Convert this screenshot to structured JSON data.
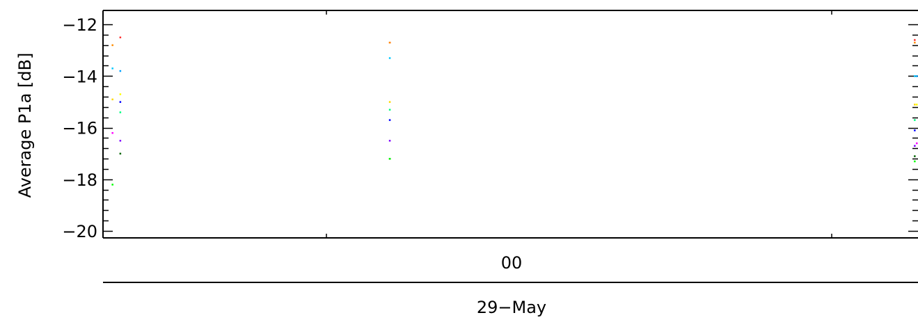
{
  "chart_data": {
    "type": "scatter",
    "title": "",
    "ylabel": "Average P1a [dB]",
    "ylim": [
      -20,
      -12
    ],
    "y_major_ticks": [
      -20,
      -18,
      -16,
      -14,
      -12
    ],
    "y_tick_labels": [
      "−20",
      "−18",
      "−16",
      "−14",
      "−12"
    ],
    "y_minor_step": 0.4,
    "x_tick_labels": [
      "00"
    ],
    "x_date_label": "29−May",
    "grid": false,
    "series": [
      {
        "color": "#ff3030",
        "x": [
          "28-May 21:05",
          "28-May 23:58",
          "29-May 05:35"
        ],
        "y": [
          -12.5,
          -12.7,
          -12.6
        ]
      },
      {
        "color": "#ff8c00",
        "x": [
          "28-May 21:00",
          "28-May 23:58",
          "29-May 05:35"
        ],
        "y": [
          -12.8,
          -12.7,
          -12.7
        ]
      },
      {
        "color": "#00c8ff",
        "x": [
          "28-May 21:00",
          "28-May 23:58",
          "29-May 05:35"
        ],
        "y": [
          -13.7,
          -13.3,
          -14.0
        ]
      },
      {
        "color": "#00a0ff",
        "x": [
          "28-May 21:05",
          "29-May 05:38"
        ],
        "y": [
          -13.8,
          -14.0
        ]
      },
      {
        "color": "#ffd700",
        "x": [
          "28-May 21:00",
          "28-May 23:58",
          "29-May 05:35"
        ],
        "y": [
          -14.9,
          -15.0,
          -15.1
        ]
      },
      {
        "color": "#ffff00",
        "x": [
          "28-May 21:05",
          "29-May 05:38"
        ],
        "y": [
          -14.7,
          -15.1
        ]
      },
      {
        "color": "#0000ff",
        "x": [
          "28-May 21:05",
          "28-May 23:58",
          "29-May 05:35"
        ],
        "y": [
          -15.0,
          -15.7,
          -16.1
        ]
      },
      {
        "color": "#00ff80",
        "x": [
          "28-May 21:05",
          "28-May 23:58",
          "29-May 05:35"
        ],
        "y": [
          -15.4,
          -15.3,
          -15.7
        ]
      },
      {
        "color": "#8000ff",
        "x": [
          "28-May 21:05",
          "28-May 23:58",
          "29-May 05:35"
        ],
        "y": [
          -16.5,
          -16.5,
          -16.7
        ]
      },
      {
        "color": "#ff00ff",
        "x": [
          "28-May 21:00",
          "29-May 05:38"
        ],
        "y": [
          -16.2,
          -16.6
        ]
      },
      {
        "color": "#006400",
        "x": [
          "28-May 21:05",
          "28-May 23:58",
          "29-May 05:35"
        ],
        "y": [
          -17.0,
          -17.2,
          -17.1
        ]
      },
      {
        "color": "#00ff00",
        "x": [
          "28-May 21:00",
          "28-May 23:58",
          "29-May 05:35"
        ],
        "y": [
          -18.2,
          -17.2,
          -17.3
        ]
      }
    ]
  }
}
